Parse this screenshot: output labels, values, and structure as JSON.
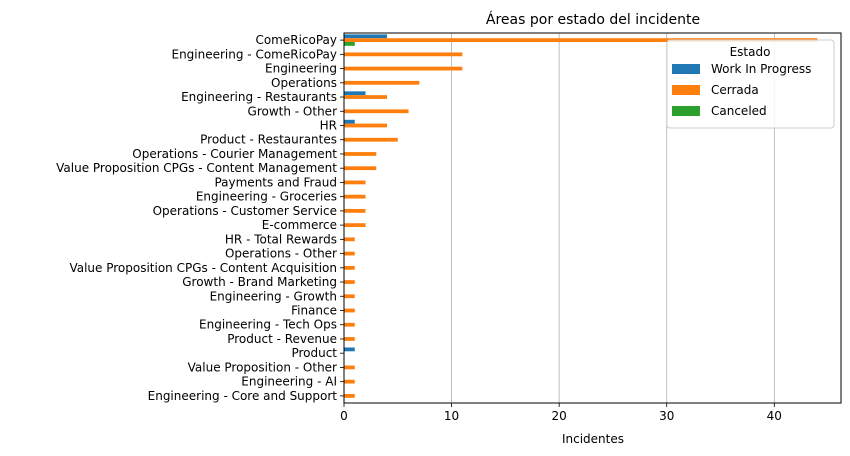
{
  "chart_data": {
    "type": "bar",
    "orientation": "horizontal",
    "title": "Áreas por estado del incidente",
    "xlabel": "Incidentes",
    "ylabel": "",
    "xlim": [
      0,
      46.2
    ],
    "xticks": [
      0,
      10,
      20,
      30,
      40
    ],
    "grid": "x",
    "legend": {
      "title": "Estado",
      "placement": "top-right"
    },
    "categories": [
      "ComeRicoPay",
      "Engineering - ComeRicoPay",
      "Engineering",
      "Operations",
      "Engineering - Restaurants",
      "Growth - Other",
      "HR",
      "Product - Restaurantes",
      "Operations - Courier Management",
      "Value Proposition CPGs - Content Management",
      "Payments and Fraud",
      "Engineering - Groceries",
      "Operations - Customer Service",
      "E-commerce",
      "HR - Total Rewards",
      "Operations - Other",
      "Value Proposition CPGs - Content Acquisition",
      "Growth - Brand Marketing",
      "Engineering - Growth",
      "Finance",
      "Engineering - Tech Ops",
      "Product - Revenue",
      "Product",
      "Value Proposition - Other",
      "Engineering - AI",
      "Engineering - Core and Support"
    ],
    "series": [
      {
        "name": "Work In Progress",
        "color": "#1f77b4",
        "values": [
          4,
          0,
          0,
          0,
          2,
          0,
          1,
          0,
          0,
          0,
          0,
          0,
          0,
          0,
          0,
          0,
          0,
          0,
          0,
          0,
          0,
          0,
          1,
          0,
          0,
          0
        ]
      },
      {
        "name": "Cerrada",
        "color": "#ff7f0e",
        "values": [
          44,
          11,
          11,
          7,
          4,
          6,
          4,
          5,
          3,
          3,
          2,
          2,
          2,
          2,
          1,
          1,
          1,
          1,
          1,
          1,
          1,
          1,
          0,
          1,
          1,
          1
        ]
      },
      {
        "name": "Canceled",
        "color": "#2ca02c",
        "values": [
          1,
          0,
          0,
          0,
          0,
          0,
          0,
          0,
          0,
          0,
          0,
          0,
          0,
          0,
          0,
          0,
          0,
          0,
          0,
          0,
          0,
          0,
          0,
          0,
          0,
          0
        ]
      }
    ]
  }
}
